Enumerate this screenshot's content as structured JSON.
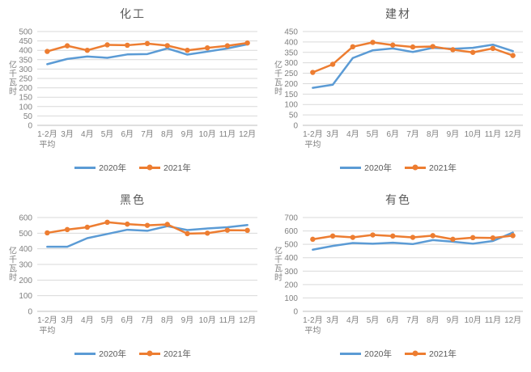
{
  "colors": {
    "series_2020": "#5B9BD5",
    "series_2021": "#ED7D31",
    "gridline": "#D9D9D9",
    "axis_line": "#BFBFBF",
    "tick_text": "#808080",
    "title_text": "#595959",
    "background": "#FFFFFF"
  },
  "chart_data": [
    {
      "type": "line",
      "title": "化工",
      "xlabel": "",
      "ylabel": "亿千瓦时",
      "ylim": [
        0,
        500
      ],
      "ytick_step": 50,
      "grid": true,
      "legend_position": "bottom",
      "categories": [
        "1-2月\n平均",
        "3月",
        "4月",
        "5月",
        "6月",
        "7月",
        "8月",
        "9月",
        "10月",
        "11月",
        "12月"
      ],
      "series": [
        {
          "name": "2020年",
          "color": "#5B9BD5",
          "marker": false,
          "values": [
            326,
            354,
            367,
            360,
            378,
            380,
            410,
            377,
            393,
            410,
            432
          ]
        },
        {
          "name": "2021年",
          "color": "#ED7D31",
          "marker": true,
          "values": [
            394,
            424,
            400,
            429,
            427,
            436,
            425,
            400,
            413,
            424,
            439
          ]
        }
      ]
    },
    {
      "type": "line",
      "title": "建材",
      "xlabel": "",
      "ylabel": "亿千瓦时",
      "ylim": [
        0,
        450
      ],
      "ytick_step": 50,
      "grid": true,
      "legend_position": "bottom",
      "categories": [
        "1-2月\n平均",
        "3月",
        "4月",
        "5月",
        "6月",
        "7月",
        "8月",
        "9月",
        "10月",
        "11月",
        "12月"
      ],
      "series": [
        {
          "name": "2020年",
          "color": "#5B9BD5",
          "marker": false,
          "values": [
            180,
            195,
            323,
            360,
            369,
            352,
            372,
            367,
            372,
            387,
            356
          ]
        },
        {
          "name": "2021年",
          "color": "#ED7D31",
          "marker": true,
          "values": [
            254,
            293,
            377,
            398,
            385,
            376,
            378,
            363,
            350,
            369,
            335
          ]
        }
      ]
    },
    {
      "type": "line",
      "title": "黑色",
      "xlabel": "",
      "ylabel": "亿千瓦时",
      "ylim": [
        0,
        600
      ],
      "ytick_step": 100,
      "grid": true,
      "legend_position": "bottom",
      "categories": [
        "1-2月\n平均",
        "3月",
        "4月",
        "5月",
        "6月",
        "7月",
        "8月",
        "9月",
        "10月",
        "11月",
        "12月"
      ],
      "series": [
        {
          "name": "2020年",
          "color": "#5B9BD5",
          "marker": false,
          "values": [
            413,
            413,
            468,
            495,
            522,
            515,
            545,
            520,
            530,
            538,
            552
          ]
        },
        {
          "name": "2021年",
          "color": "#ED7D31",
          "marker": true,
          "values": [
            502,
            523,
            538,
            570,
            558,
            550,
            556,
            497,
            500,
            519,
            518
          ]
        }
      ]
    },
    {
      "type": "line",
      "title": "有色",
      "xlabel": "",
      "ylabel": "亿千瓦时",
      "ylim": [
        0,
        700
      ],
      "ytick_step": 100,
      "grid": true,
      "legend_position": "bottom",
      "categories": [
        "1-2月\n平均",
        "3月",
        "4月",
        "5月",
        "6月",
        "7月",
        "8月",
        "9月",
        "10月",
        "11月",
        "12月"
      ],
      "series": [
        {
          "name": "2020年",
          "color": "#5B9BD5",
          "marker": false,
          "values": [
            460,
            488,
            510,
            505,
            512,
            502,
            532,
            520,
            505,
            525,
            588
          ]
        },
        {
          "name": "2021年",
          "color": "#ED7D31",
          "marker": true,
          "values": [
            538,
            562,
            552,
            570,
            562,
            552,
            565,
            538,
            550,
            548,
            565
          ]
        }
      ]
    }
  ]
}
